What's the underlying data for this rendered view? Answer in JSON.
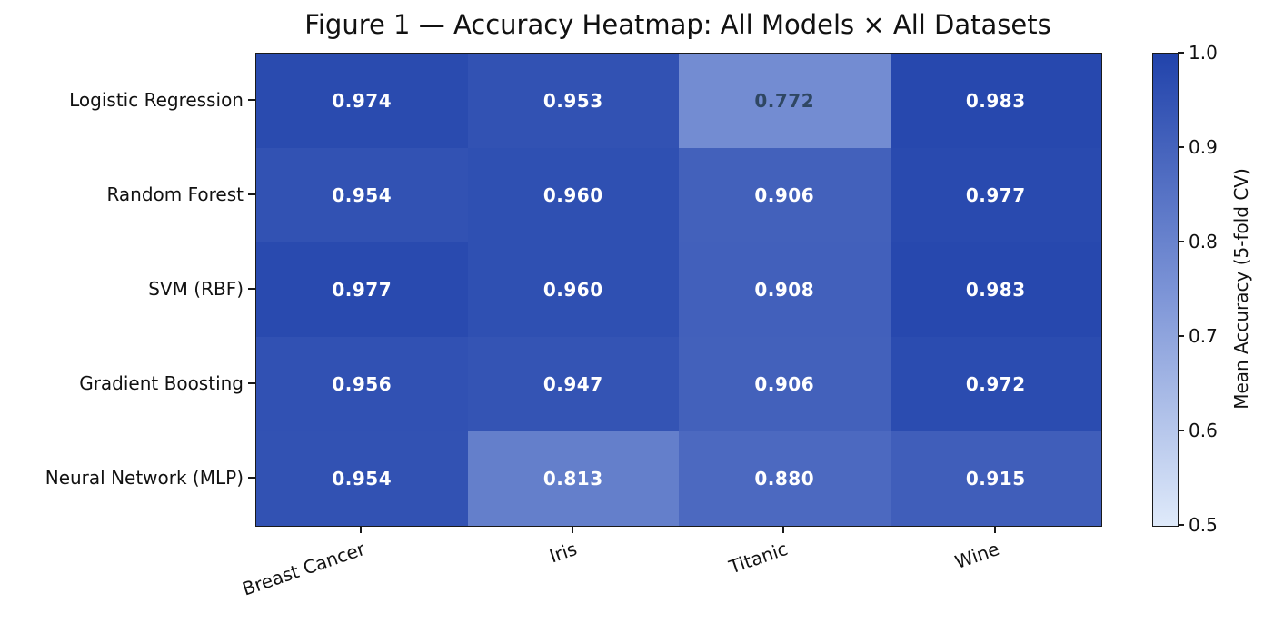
{
  "title": "Figure 1 — Accuracy Heatmap: All Models × All Datasets",
  "chart_data": {
    "type": "heatmap",
    "title": "Figure 1 — Accuracy Heatmap: All Models × All Datasets",
    "rows": [
      "Logistic Regression",
      "Random Forest",
      "SVM (RBF)",
      "Gradient Boosting",
      "Neural Network (MLP)"
    ],
    "columns": [
      "Breast Cancer",
      "Iris",
      "Titanic",
      "Wine"
    ],
    "values": [
      [
        0.974,
        0.953,
        0.772,
        0.983
      ],
      [
        0.954,
        0.96,
        0.906,
        0.977
      ],
      [
        0.977,
        0.96,
        0.908,
        0.983
      ],
      [
        0.956,
        0.947,
        0.906,
        0.972
      ],
      [
        0.954,
        0.813,
        0.88,
        0.915
      ]
    ],
    "value_decimals": 3,
    "colorbar": {
      "label": "Mean Accuracy (5-fold CV)",
      "tick_labels": [
        "1.0",
        "0.9",
        "0.8",
        "0.7",
        "0.6",
        "0.5"
      ],
      "vmin": 0.5,
      "vmax": 1.0
    },
    "colors": {
      "cmap_stops": [
        {
          "t": 0.0,
          "hex": "#dfeafa"
        },
        {
          "t": 0.5,
          "hex": "#7b93d6"
        },
        {
          "t": 1.0,
          "hex": "#2143ab"
        }
      ],
      "cell_text_light": "#ffffff",
      "cell_text_dark": "#2f4763",
      "axis": "#1a1a1a",
      "background": "#ffffff"
    },
    "layout_hints": {
      "grid": "off",
      "colorbar_position": "right",
      "x_tick_rotation_deg": 19
    }
  }
}
